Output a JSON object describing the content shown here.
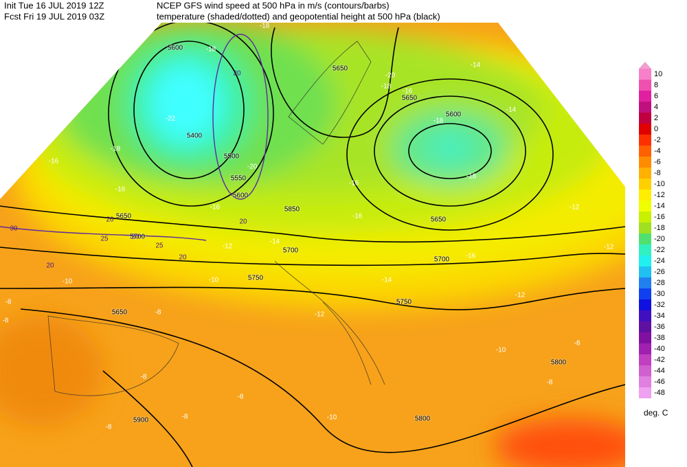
{
  "header": {
    "init": "Init  Tue 16 JUL 2019 12Z",
    "forecast": "Fcst Fri 19 JUL 2019 03Z",
    "title": "NCEP GFS wind speed at 500 hPa in m/s (contours/barbs)",
    "subtitle": "temperature (shaded/dotted) and geopotential height at 500 hPa (black)"
  },
  "colorbar": {
    "levels": [
      10,
      8,
      6,
      4,
      2,
      0,
      -2,
      -4,
      -6,
      -8,
      -10,
      -12,
      -14,
      -16,
      -18,
      -20,
      -22,
      -24,
      -26,
      -28,
      -30,
      -32,
      -34,
      -36,
      -38,
      -40,
      -42,
      -44,
      -46,
      -48
    ],
    "colors": [
      "#f880c8",
      "#f050b0",
      "#e020a0",
      "#c01080",
      "#c00040",
      "#e00000",
      "#ff3000",
      "#ff6000",
      "#ff8c00",
      "#ffb000",
      "#ffd000",
      "#ffee00",
      "#f0ff00",
      "#c8f000",
      "#a0e020",
      "#50e070",
      "#30f0c0",
      "#20f0f0",
      "#20c0f0",
      "#2080f0",
      "#1040f0",
      "#1010e0",
      "#4010c0",
      "#6010a0",
      "#8010a0",
      "#a020b0",
      "#c040c0",
      "#d060d0",
      "#e080e0",
      "#f0a0f0"
    ],
    "top_color": "#f0a0d0",
    "unit": "deg. C"
  },
  "map": {
    "height_labels": [
      5400,
      5500,
      5550,
      5600,
      5650,
      5650,
      5600,
      5650,
      5850,
      5700,
      5700,
      5750,
      5750,
      5650,
      5800,
      5800,
      5900,
      5600,
      5650,
      5700
    ],
    "temperature_labels": [
      -18,
      -18,
      -22,
      -18,
      -16,
      -16,
      -16,
      -20,
      -20,
      -18,
      -16,
      -14,
      -14,
      -18,
      -18,
      -16,
      -16,
      -12,
      -12,
      -14,
      -16,
      -12,
      -14,
      -12,
      -10,
      -10,
      -12,
      -8,
      -8,
      -8,
      -8,
      -8,
      -8,
      -8,
      -10,
      -8,
      -8,
      -10
    ],
    "wind_labels": [
      20,
      30,
      20,
      25,
      20,
      25,
      20,
      20,
      20
    ]
  }
}
